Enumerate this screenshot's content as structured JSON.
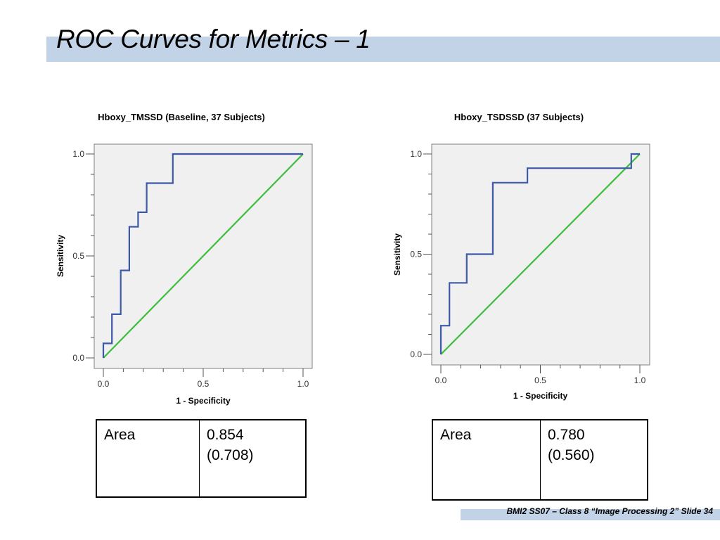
{
  "slide": {
    "title": "ROC Curves for Metrics – 1",
    "footer": "BMI2 SS07 – Class 8 “Image Processing 2” Slide 34"
  },
  "chart_data": [
    {
      "type": "line",
      "title": "Hboxy_TMSSD (Baseline, 37 Subjects)",
      "xlabel": "1 - Specificity",
      "ylabel": "Sensitivity",
      "xlim": [
        0,
        1
      ],
      "ylim": [
        0,
        1
      ],
      "xticks": [
        "0.0",
        "0.5",
        "1.0"
      ],
      "yticks": [
        "0.0",
        "0.5",
        "1.0"
      ],
      "background": "#f0f0f0",
      "series": [
        {
          "color": "#3c5aa8",
          "x": [
            0,
            0,
            0.043,
            0.043,
            0.087,
            0.087,
            0.13,
            0.13,
            0.174,
            0.174,
            0.217,
            0.217,
            0.348,
            0.348,
            1
          ],
          "y": [
            0,
            0.071,
            0.071,
            0.214,
            0.214,
            0.429,
            0.429,
            0.643,
            0.643,
            0.714,
            0.714,
            0.857,
            0.857,
            1,
            1
          ]
        },
        {
          "color": "#3cbe3c",
          "x": [
            0,
            1
          ],
          "y": [
            0,
            1
          ]
        }
      ]
    },
    {
      "type": "line",
      "title": "Hboxy_TSDSSD (37 Subjects)",
      "xlabel": "1 - Specificity",
      "ylabel": "Sensitivity",
      "xlim": [
        0,
        1
      ],
      "ylim": [
        0,
        1
      ],
      "xticks": [
        "0.0",
        "0.5",
        "1.0"
      ],
      "yticks": [
        "0.0",
        "0.5",
        "1.0"
      ],
      "background": "#f0f0f0",
      "series": [
        {
          "color": "#3c5aa8",
          "x": [
            0,
            0,
            0.043,
            0.043,
            0.13,
            0.13,
            0.261,
            0.261,
            0.435,
            0.435,
            0.957,
            0.957,
            1
          ],
          "y": [
            0,
            0.143,
            0.143,
            0.357,
            0.357,
            0.5,
            0.5,
            0.857,
            0.857,
            0.929,
            0.929,
            1,
            1
          ]
        },
        {
          "color": "#3cbe3c",
          "x": [
            0,
            1
          ],
          "y": [
            0,
            1
          ]
        }
      ]
    }
  ],
  "tables": [
    {
      "label": "Area",
      "value": "0.854",
      "value2": "(0.708)"
    },
    {
      "label": "Area",
      "value": "0.780",
      "value2": "(0.560)"
    }
  ]
}
